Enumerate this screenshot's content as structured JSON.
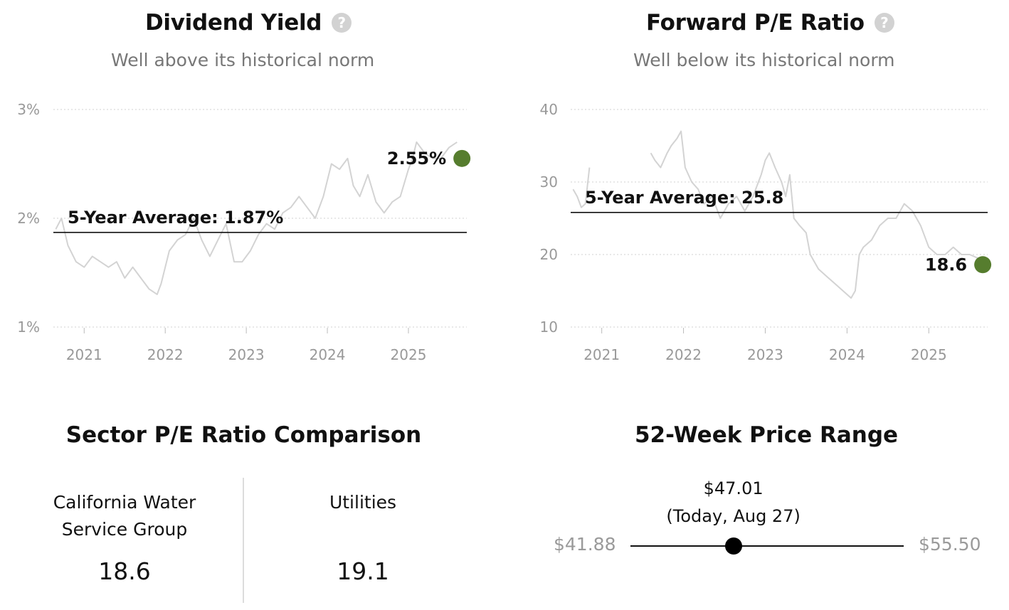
{
  "dividend": {
    "title": "Dividend Yield",
    "help_icon": "question-circle-icon",
    "subtitle": "Well above its historical norm"
  },
  "pe": {
    "title": "Forward P/E Ratio",
    "help_icon": "question-circle-icon",
    "subtitle": "Well below its historical norm"
  },
  "chart_data": [
    {
      "type": "line",
      "title": "Dividend Yield",
      "subtitle": "Well above its historical norm",
      "x_ticks": [
        "2021",
        "2022",
        "2023",
        "2024",
        "2025"
      ],
      "y_ticks": [
        "3%",
        "2%",
        "1%"
      ],
      "ylim": [
        1,
        3
      ],
      "xlim": [
        2020.62,
        2025.72
      ],
      "grid": true,
      "series_color": "#d3d3d3",
      "marker_color": "#567d2e",
      "average": {
        "label": "5-Year Average: 1.87%",
        "value": 1.87
      },
      "current": {
        "label": "2.55%",
        "x": 2025.66,
        "value": 2.55
      },
      "x": [
        2020.65,
        2020.72,
        2020.8,
        2020.9,
        2021.0,
        2021.1,
        2021.2,
        2021.3,
        2021.4,
        2021.5,
        2021.6,
        2021.7,
        2021.8,
        2021.9,
        2021.95,
        2022.05,
        2022.15,
        2022.25,
        2022.35,
        2022.45,
        2022.55,
        2022.65,
        2022.75,
        2022.85,
        2022.95,
        2023.05,
        2023.15,
        2023.25,
        2023.35,
        2023.45,
        2023.55,
        2023.65,
        2023.75,
        2023.85,
        2023.95,
        2024.05,
        2024.15,
        2024.25,
        2024.32,
        2024.4,
        2024.5,
        2024.6,
        2024.7,
        2024.8,
        2024.9,
        2025.0,
        2025.05,
        2025.1,
        2025.2,
        2025.3,
        2025.4,
        2025.5,
        2025.6
      ],
      "values": [
        1.9,
        2.0,
        1.75,
        1.6,
        1.55,
        1.65,
        1.6,
        1.55,
        1.6,
        1.45,
        1.55,
        1.45,
        1.35,
        1.3,
        1.4,
        1.7,
        1.8,
        1.85,
        2.0,
        1.8,
        1.65,
        1.8,
        1.95,
        1.6,
        1.6,
        1.7,
        1.85,
        1.95,
        1.9,
        2.05,
        2.1,
        2.2,
        2.1,
        2.0,
        2.2,
        2.5,
        2.45,
        2.55,
        2.3,
        2.2,
        2.4,
        2.15,
        2.05,
        2.15,
        2.2,
        2.45,
        2.55,
        2.7,
        2.6,
        2.55,
        2.55,
        2.65,
        2.7
      ]
    },
    {
      "type": "line",
      "title": "Forward P/E Ratio",
      "subtitle": "Well below its historical norm",
      "x_ticks": [
        "2021",
        "2022",
        "2023",
        "2024",
        "2025"
      ],
      "y_ticks": [
        "40",
        "30",
        "20",
        "10"
      ],
      "ylim": [
        10,
        40
      ],
      "xlim": [
        2020.62,
        2025.72
      ],
      "grid": true,
      "series_color": "#d3d3d3",
      "marker_color": "#567d2e",
      "average": {
        "label": "5-Year Average: 25.8",
        "value": 25.8
      },
      "current": {
        "label": "18.6",
        "x": 2025.66,
        "value": 18.6
      },
      "segments": [
        {
          "x": [
            2020.65,
            2020.7,
            2020.75,
            2020.8,
            2020.85
          ],
          "values": [
            29,
            28,
            26.5,
            27,
            32
          ]
        },
        {
          "x": [
            2021.6,
            2021.65,
            2021.72,
            2021.8,
            2021.85,
            2021.92,
            2021.97,
            2022.02,
            2022.1,
            2022.18,
            2022.25,
            2022.35,
            2022.45,
            2022.55,
            2022.65,
            2022.75,
            2022.85,
            2022.95,
            2023.0,
            2023.05,
            2023.12,
            2023.2,
            2023.25,
            2023.3,
            2023.35,
            2023.42,
            2023.5,
            2023.55,
            2023.65,
            2023.75,
            2023.85,
            2023.95,
            2024.05,
            2024.1,
            2024.15,
            2024.2,
            2024.3,
            2024.4,
            2024.5,
            2024.6,
            2024.7,
            2024.8,
            2024.9,
            2025.0,
            2025.1,
            2025.2,
            2025.3,
            2025.4,
            2025.5,
            2025.6
          ],
          "values": [
            34,
            33,
            32,
            34,
            35,
            36,
            37,
            32,
            30,
            29,
            27,
            28,
            25,
            27,
            28,
            26,
            28,
            31,
            33,
            34,
            32,
            30,
            28,
            31,
            25,
            24,
            23,
            20,
            18,
            17,
            16,
            15,
            14,
            15,
            20,
            21,
            22,
            24,
            25,
            25,
            27,
            26,
            24,
            21,
            20,
            20,
            21,
            20,
            20,
            19.5
          ]
        }
      ]
    }
  ],
  "sector": {
    "title": "Sector P/E Ratio Comparison",
    "company_line1": "California Water",
    "company_line2": "Service Group",
    "company_value": "18.6",
    "sector_name": "Utilities",
    "sector_value": "19.1"
  },
  "range": {
    "title": "52-Week Price Range",
    "current_price": "$47.01",
    "current_note": "(Today, Aug 27)",
    "low": "$41.88",
    "high": "$55.50",
    "low_value": 41.88,
    "high_value": 55.5,
    "current_value": 47.01
  }
}
